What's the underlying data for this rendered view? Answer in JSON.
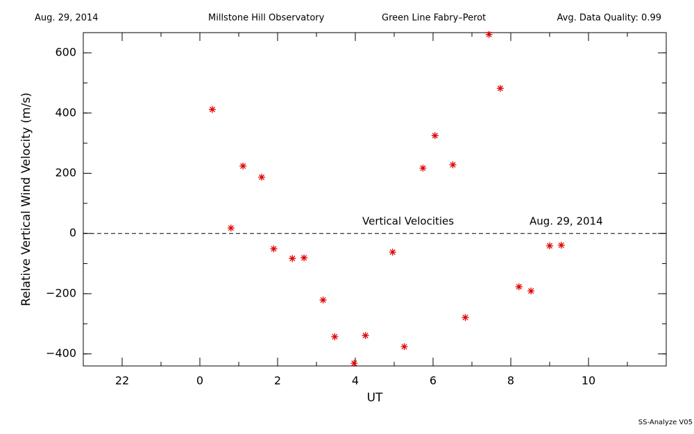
{
  "chart_data": {
    "type": "scatter",
    "header": [
      "Aug. 29, 2014",
      "Millstone Hill Observatory",
      "Green Line Fabry–Perot",
      "Avg. Data Quality: 0.99"
    ],
    "xlabel": "UT",
    "ylabel": "Relative Vertical Wind Velocity (m/s)",
    "annotations": [
      "Vertical Velocities",
      "Aug. 29, 2014"
    ],
    "footer": "SS-Analyze V05",
    "xlim": [
      -3,
      12
    ],
    "ylim": [
      -440,
      667
    ],
    "xticks": [
      {
        "value": -2,
        "label": "22"
      },
      0,
      2,
      4,
      6,
      8,
      10
    ],
    "yticks": [
      {
        "value": -400,
        "label": "−400"
      },
      {
        "value": -200,
        "label": "−200"
      },
      0,
      200,
      400,
      600
    ],
    "hline": 0,
    "series": [
      {
        "color": "#e00000",
        "x": [
          0.32,
          0.8,
          1.11,
          1.59,
          1.9,
          2.38,
          2.68,
          3.17,
          3.47,
          3.97,
          4.26,
          4.96,
          5.26,
          5.74,
          6.05,
          6.51,
          6.83,
          7.44,
          7.73,
          8.21,
          8.52,
          9.0,
          9.3
        ],
        "values": [
          412,
          18,
          224,
          187,
          -51,
          -83,
          -81,
          -221,
          -343,
          -431,
          -339,
          -62,
          -376,
          217,
          325,
          228,
          -279,
          661,
          482,
          -177,
          -191,
          -41,
          -39
        ]
      }
    ]
  }
}
